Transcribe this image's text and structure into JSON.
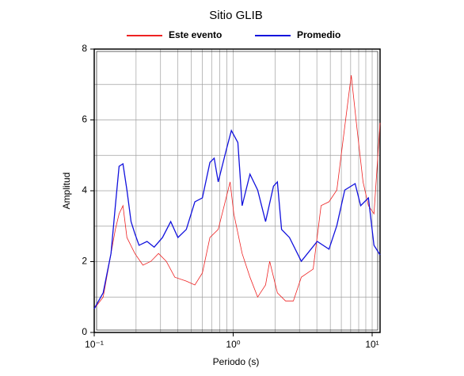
{
  "chart_data": {
    "type": "line",
    "title": "Sitio GLIB",
    "xlabel": "Periodo (s)",
    "ylabel": "Amplitud",
    "xscale": "log",
    "xlim": [
      0.1,
      11.4
    ],
    "ylim": [
      0,
      8
    ],
    "xticks": [
      {
        "value": 0.1,
        "label": "10⁻¹"
      },
      {
        "value": 1,
        "label": "10⁰"
      },
      {
        "value": 10,
        "label": "10¹"
      }
    ],
    "xminor": [
      0.2,
      0.3,
      0.4,
      0.5,
      0.6,
      0.7,
      0.8,
      0.9,
      2,
      3,
      4,
      5,
      6,
      7,
      8,
      9
    ],
    "yticks": [
      0,
      2,
      4,
      6,
      8
    ],
    "yminor": [
      1,
      3,
      5,
      7
    ],
    "grid": true,
    "legend": "top",
    "series": [
      {
        "name": "Este evento",
        "color": "#ee2222",
        "x": [
          0.1,
          0.116,
          0.132,
          0.142,
          0.151,
          0.161,
          0.172,
          0.196,
          0.224,
          0.256,
          0.29,
          0.33,
          0.38,
          0.46,
          0.53,
          0.6,
          0.68,
          0.78,
          0.89,
          0.95,
          1.01,
          1.16,
          1.32,
          1.5,
          1.71,
          1.83,
          2.08,
          2.38,
          2.71,
          3.09,
          3.76,
          4.29,
          4.89,
          5.57,
          6.35,
          7.07,
          7.75,
          8.6,
          9.4,
          10.3,
          11.4
        ],
        "values": [
          0.67,
          1.0,
          2.23,
          2.91,
          3.35,
          3.58,
          2.68,
          2.23,
          1.9,
          2.01,
          2.23,
          2.01,
          1.56,
          1.45,
          1.34,
          1.68,
          2.68,
          2.91,
          3.8,
          4.25,
          3.35,
          2.23,
          1.56,
          1.0,
          1.34,
          2.01,
          1.12,
          0.89,
          0.89,
          1.56,
          1.79,
          3.58,
          3.69,
          4.02,
          5.81,
          7.26,
          5.81,
          4.25,
          3.58,
          3.35,
          5.92
        ]
      },
      {
        "name": "Promedio",
        "color": "#1111dd",
        "x": [
          0.1,
          0.116,
          0.132,
          0.142,
          0.151,
          0.161,
          0.172,
          0.184,
          0.196,
          0.21,
          0.24,
          0.27,
          0.31,
          0.355,
          0.4,
          0.46,
          0.53,
          0.6,
          0.68,
          0.73,
          0.78,
          0.89,
          0.97,
          1.08,
          1.16,
          1.32,
          1.5,
          1.71,
          1.95,
          2.08,
          2.23,
          2.54,
          3.09,
          4.02,
          4.89,
          5.57,
          6.35,
          7.54,
          8.27,
          9.4,
          10.3,
          11.4
        ],
        "values": [
          0.67,
          1.12,
          2.23,
          3.58,
          4.69,
          4.76,
          4.02,
          3.13,
          2.79,
          2.46,
          2.57,
          2.41,
          2.68,
          3.13,
          2.68,
          2.91,
          3.69,
          3.8,
          4.8,
          4.92,
          4.25,
          5.14,
          5.7,
          5.36,
          3.58,
          4.47,
          4.02,
          3.13,
          4.13,
          4.25,
          2.91,
          2.68,
          2.01,
          2.57,
          2.35,
          3.02,
          4.02,
          4.2,
          3.58,
          3.8,
          2.46,
          2.19
        ]
      }
    ]
  }
}
